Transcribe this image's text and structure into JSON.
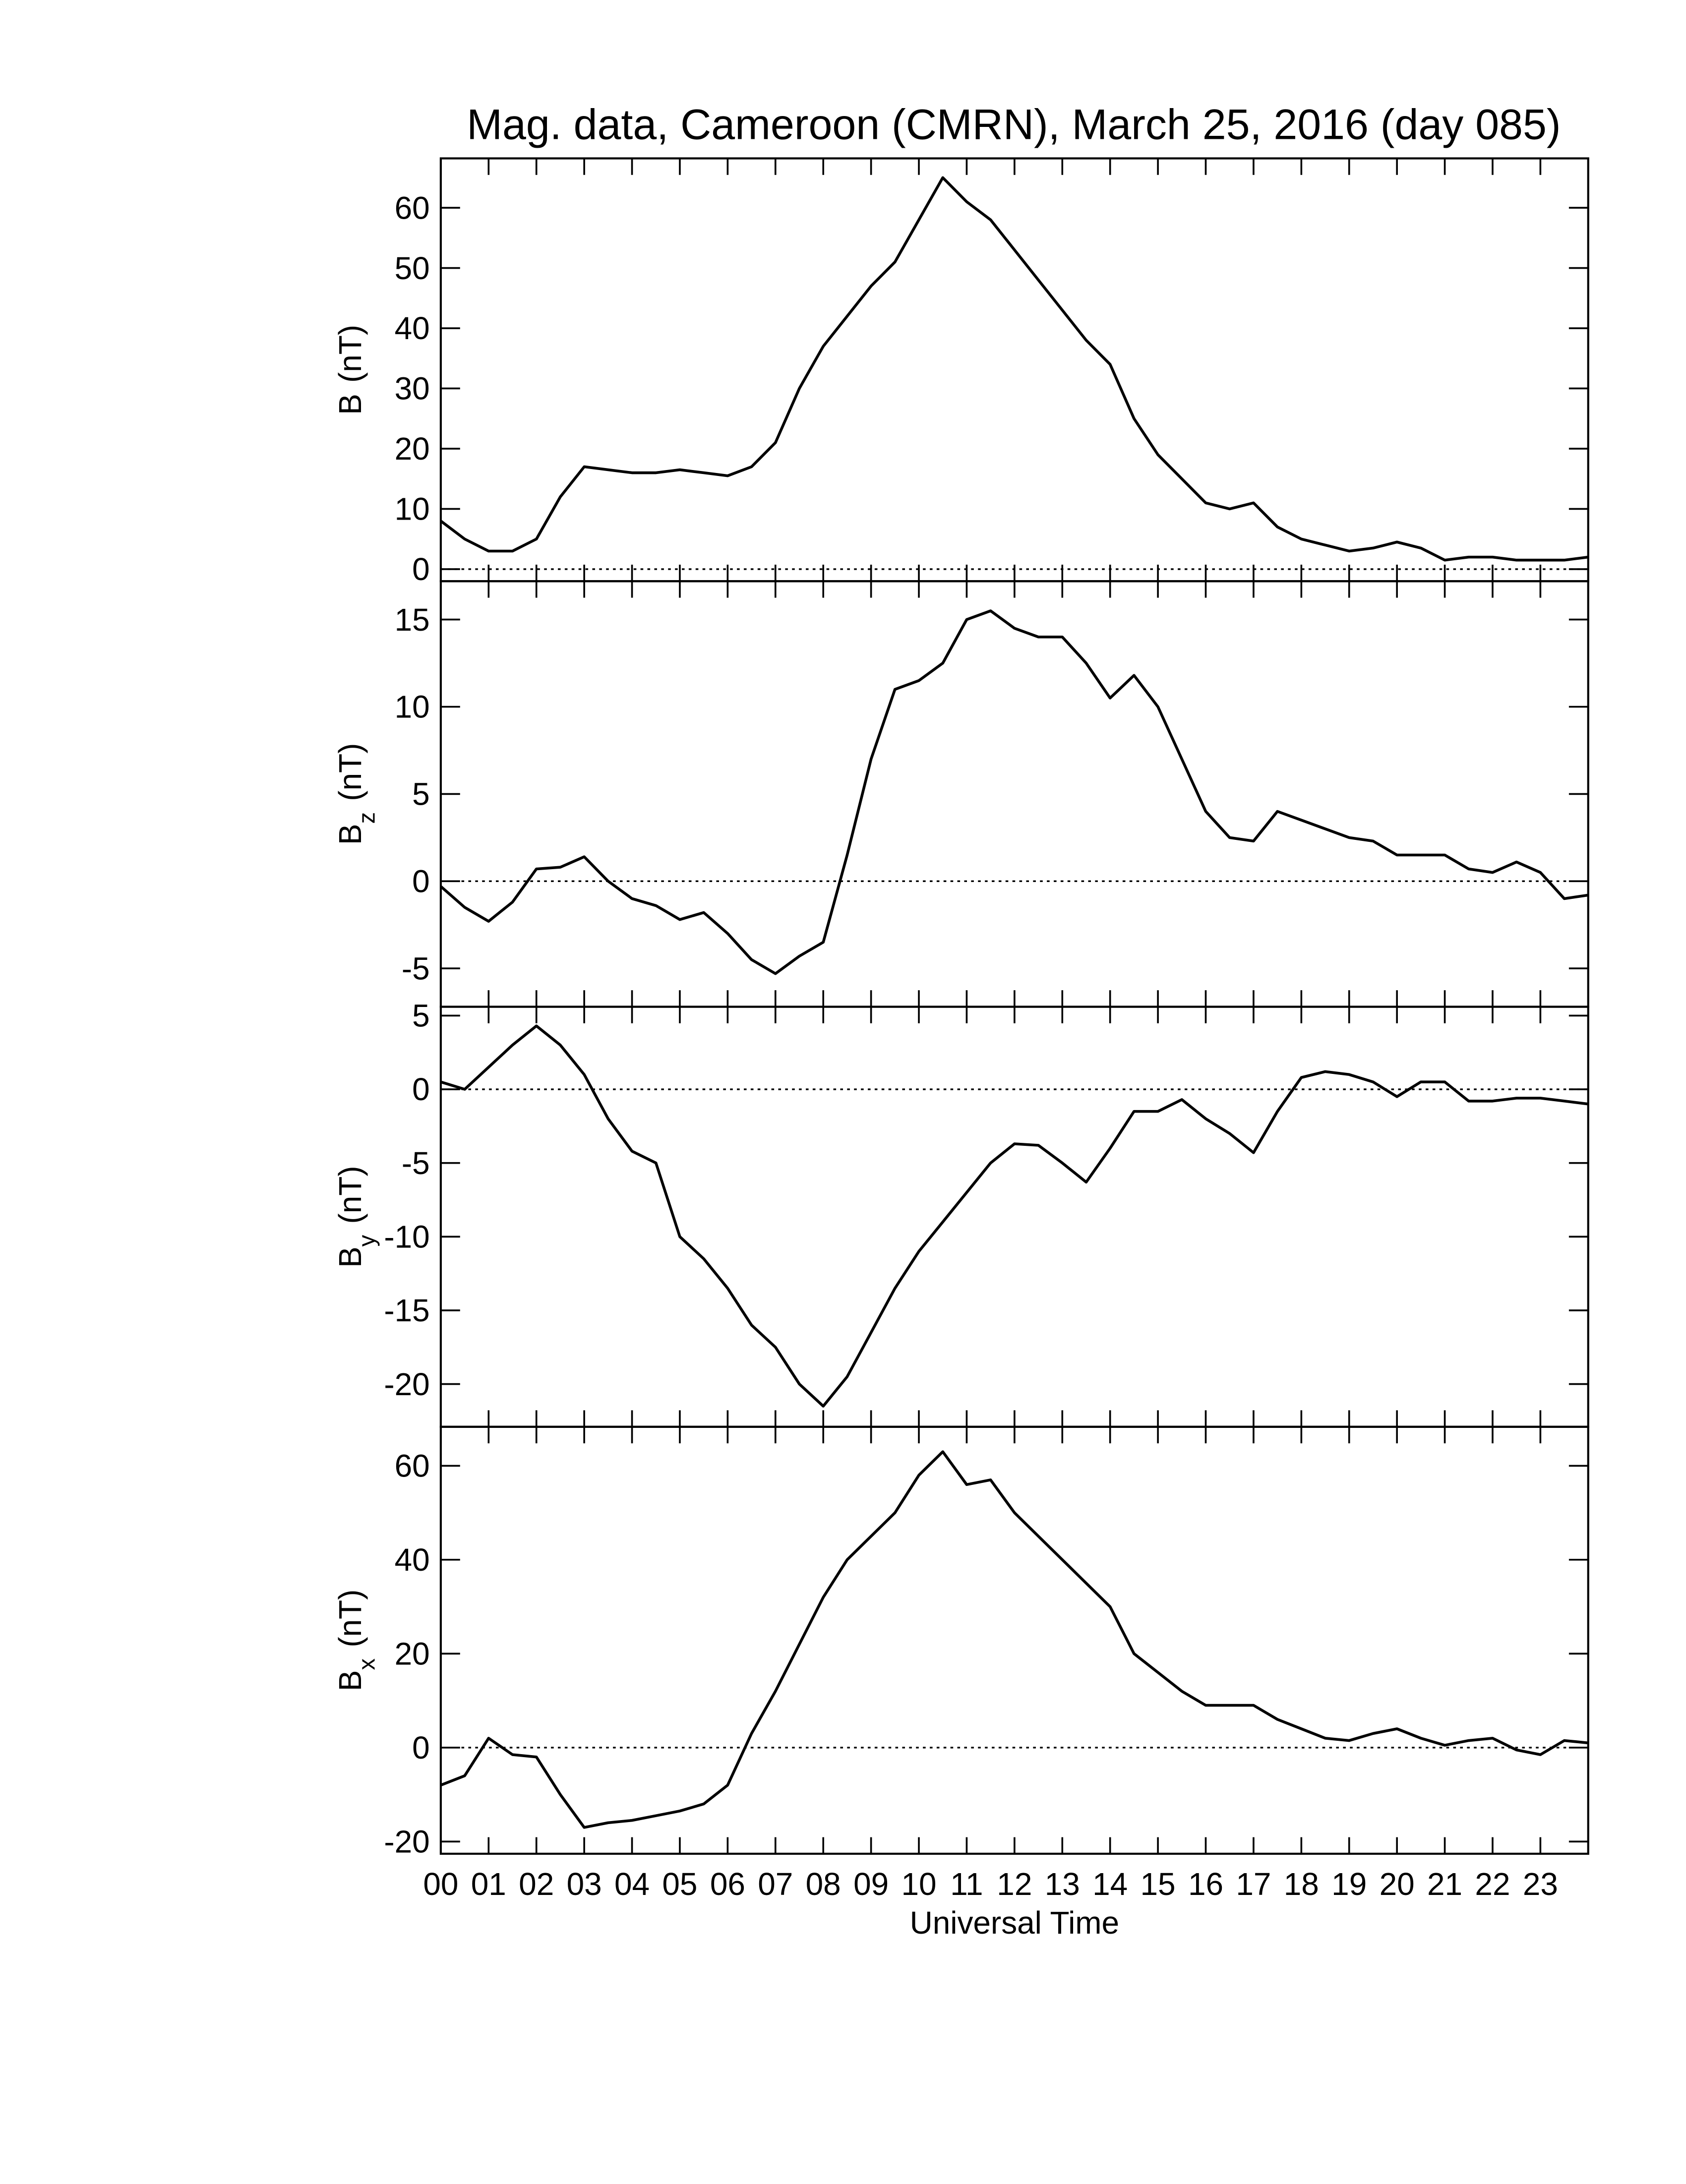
{
  "chart_data": [
    {
      "type": "line",
      "title": "Mag. data, Cameroon (CMRN), March 25, 2016 (day 085)",
      "ylabel": [
        "B",
        "(nT)"
      ],
      "x": [
        0,
        0.5,
        1,
        1.5,
        2,
        2.5,
        3,
        3.5,
        4,
        4.5,
        5,
        5.5,
        6,
        6.5,
        7,
        7.5,
        8,
        8.5,
        9,
        9.5,
        10,
        10.5,
        11,
        11.5,
        12,
        12.5,
        13,
        13.5,
        14,
        14.5,
        15,
        15.5,
        16,
        16.5,
        17,
        17.5,
        18,
        18.5,
        19,
        19.5,
        20,
        20.5,
        21,
        21.5,
        22,
        22.5,
        23,
        23.5,
        24
      ],
      "values": [
        8,
        5,
        3,
        3,
        5,
        12,
        17,
        16.5,
        16,
        16,
        16.5,
        16,
        15.5,
        17,
        21,
        30,
        37,
        42,
        47,
        51,
        58,
        65,
        61,
        58,
        53,
        48,
        43,
        38,
        34,
        25,
        19,
        15,
        11,
        10,
        11,
        7,
        5,
        4,
        3,
        3.5,
        4.5,
        3.5,
        1.5,
        2,
        2,
        1.5,
        1.5,
        1.5,
        2
      ],
      "color": "#000000",
      "xlim": [
        0,
        24
      ],
      "xticks": [
        0,
        1,
        2,
        3,
        4,
        5,
        6,
        7,
        8,
        9,
        10,
        11,
        12,
        13,
        14,
        15,
        16,
        17,
        18,
        19,
        20,
        21,
        22,
        23
      ],
      "ylim": [
        -2,
        68.2
      ],
      "yticks": [
        0,
        10,
        20,
        30,
        40,
        50,
        60
      ],
      "zero_line": true
    },
    {
      "type": "line",
      "ylabel": [
        "B",
        "z",
        "(nT)"
      ],
      "x": [
        0,
        0.5,
        1,
        1.5,
        2,
        2.5,
        3,
        3.5,
        4,
        4.5,
        5,
        5.5,
        6,
        6.5,
        7,
        7.5,
        8,
        8.5,
        9,
        9.5,
        10,
        10.5,
        11,
        11.5,
        12,
        12.5,
        13,
        13.5,
        14,
        14.5,
        15,
        15.5,
        16,
        16.5,
        17,
        17.5,
        18,
        18.5,
        19,
        19.5,
        20,
        20.5,
        21,
        21.5,
        22,
        22.5,
        23,
        23.5,
        24
      ],
      "values": [
        -0.3,
        -1.5,
        -2.3,
        -1.2,
        0.7,
        0.8,
        1.4,
        0,
        -1,
        -1.4,
        -2.2,
        -1.8,
        -3,
        -4.5,
        -5.3,
        -4.3,
        -3.5,
        1.5,
        7,
        11,
        11.5,
        12.5,
        15,
        15.5,
        14.5,
        14,
        14,
        12.5,
        10.5,
        11.8,
        10,
        7,
        4,
        2.5,
        2.3,
        4,
        3.5,
        3,
        2.5,
        2.3,
        1.5,
        1.5,
        1.5,
        0.7,
        0.5,
        1.1,
        0.5,
        -1,
        -0.8
      ],
      "color": "#000000",
      "xlim": [
        0,
        24
      ],
      "xticks": [
        0,
        1,
        2,
        3,
        4,
        5,
        6,
        7,
        8,
        9,
        10,
        11,
        12,
        13,
        14,
        15,
        16,
        17,
        18,
        19,
        20,
        21,
        22,
        23
      ],
      "ylim": [
        -7.2,
        17.2
      ],
      "yticks": [
        -5,
        0,
        5,
        10,
        15
      ],
      "zero_line": true
    },
    {
      "type": "line",
      "ylabel": [
        "B",
        "y",
        "(nT)"
      ],
      "x": [
        0,
        0.5,
        1,
        1.5,
        2,
        2.5,
        3,
        3.5,
        4,
        4.5,
        5,
        5.5,
        6,
        6.5,
        7,
        7.5,
        8,
        8.5,
        9,
        9.5,
        10,
        10.5,
        11,
        11.5,
        12,
        12.5,
        13,
        13.5,
        14,
        14.5,
        15,
        15.5,
        16,
        16.5,
        17,
        17.5,
        18,
        18.5,
        19,
        19.5,
        20,
        20.5,
        21,
        21.5,
        22,
        22.5,
        23,
        23.5,
        24
      ],
      "values": [
        0.5,
        0,
        1.5,
        3,
        4.3,
        3,
        1,
        -2,
        -4.2,
        -5,
        -10,
        -11.5,
        -13.5,
        -16,
        -17.5,
        -20,
        -21.5,
        -19.5,
        -16.5,
        -13.5,
        -11,
        -9,
        -7,
        -5,
        -3.7,
        -3.8,
        -5,
        -6.3,
        -4,
        -1.5,
        -1.5,
        -0.7,
        -2,
        -3,
        -4.3,
        -1.5,
        0.8,
        1.2,
        1,
        0.5,
        -0.5,
        0.5,
        0.5,
        -0.8,
        -0.8,
        -0.6,
        -0.6,
        -0.8,
        -1
      ],
      "color": "#000000",
      "xlim": [
        0,
        24
      ],
      "xticks": [
        0,
        1,
        2,
        3,
        4,
        5,
        6,
        7,
        8,
        9,
        10,
        11,
        12,
        13,
        14,
        15,
        16,
        17,
        18,
        19,
        20,
        21,
        22,
        23
      ],
      "ylim": [
        -22.9,
        5.6
      ],
      "yticks": [
        -20,
        -15,
        -10,
        -5,
        0,
        5
      ],
      "zero_line": true
    },
    {
      "type": "line",
      "ylabel": [
        "B",
        "x",
        "(nT)"
      ],
      "xlabel": "Universal Time",
      "x": [
        0,
        0.5,
        1,
        1.5,
        2,
        2.5,
        3,
        3.5,
        4,
        4.5,
        5,
        5.5,
        6,
        6.5,
        7,
        7.5,
        8,
        8.5,
        9,
        9.5,
        10,
        10.5,
        11,
        11.5,
        12,
        12.5,
        13,
        13.5,
        14,
        14.5,
        15,
        15.5,
        16,
        16.5,
        17,
        17.5,
        18,
        18.5,
        19,
        19.5,
        20,
        20.5,
        21,
        21.5,
        22,
        22.5,
        23,
        23.5,
        24
      ],
      "values": [
        -8,
        -6,
        2,
        -1.5,
        -2,
        -10,
        -17,
        -16,
        -15.5,
        -14.5,
        -13.5,
        -12,
        -8,
        3,
        12,
        22,
        32,
        40,
        45,
        50,
        58,
        63,
        56,
        57,
        50,
        45,
        40,
        35,
        30,
        20,
        16,
        12,
        9,
        9,
        9,
        6,
        4,
        2,
        1.5,
        3,
        4,
        2,
        0.5,
        1.5,
        2,
        -0.5,
        -1.5,
        1.5,
        1
      ],
      "color": "#000000",
      "xlim": [
        0,
        24
      ],
      "xticks": [
        {
          "value": 0,
          "label": "00"
        },
        {
          "value": 1,
          "label": "01"
        },
        {
          "value": 2,
          "label": "02"
        },
        {
          "value": 3,
          "label": "03"
        },
        {
          "value": 4,
          "label": "04"
        },
        {
          "value": 5,
          "label": "05"
        },
        {
          "value": 6,
          "label": "06"
        },
        {
          "value": 7,
          "label": "07"
        },
        {
          "value": 8,
          "label": "08"
        },
        {
          "value": 9,
          "label": "09"
        },
        10,
        11,
        12,
        13,
        14,
        15,
        16,
        17,
        18,
        19,
        20,
        21,
        22,
        23
      ],
      "ylim": [
        -22.6,
        68.3
      ],
      "yticks": [
        -20,
        0,
        20,
        40,
        60
      ],
      "zero_line": true
    }
  ]
}
